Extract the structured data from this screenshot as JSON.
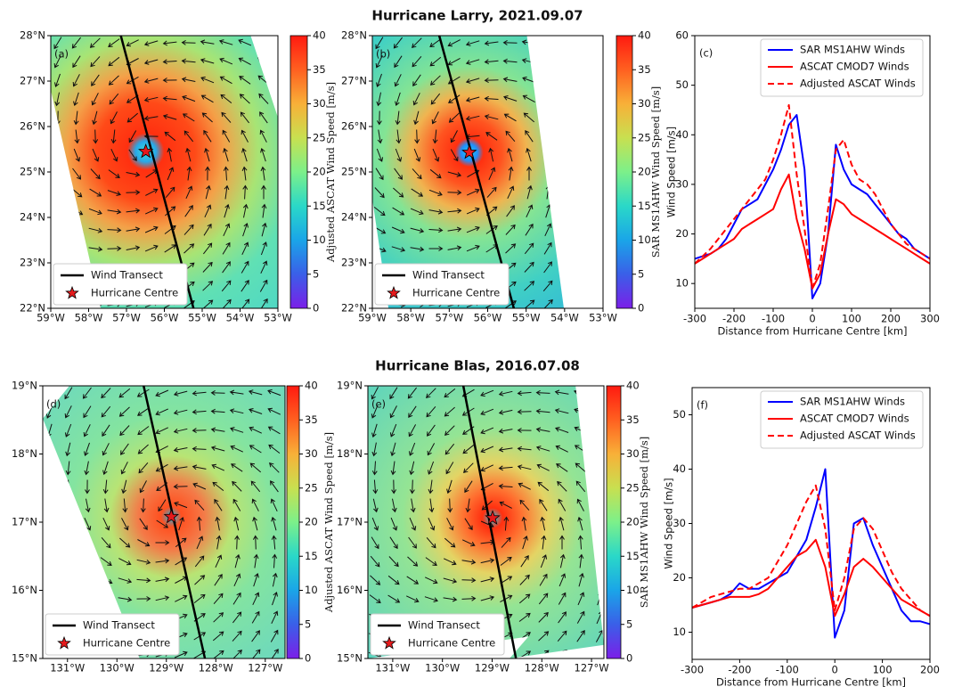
{
  "figure": {
    "titles": [
      "Hurricane Larry, 2021.09.07",
      "Hurricane Blas, 2016.07.08"
    ]
  },
  "chart_data": [
    {
      "type": "map",
      "panel_label": "(a)",
      "xlim": [
        -59,
        -53
      ],
      "xticks": [
        {
          "value": -59,
          "label": "59°W"
        },
        {
          "value": -58,
          "label": "58°W"
        },
        {
          "value": -57,
          "label": "57°W"
        },
        {
          "value": -56,
          "label": "56°W"
        },
        {
          "value": -55,
          "label": "55°W"
        },
        {
          "value": -54,
          "label": "54°W"
        },
        {
          "value": -53,
          "label": "53°W"
        }
      ],
      "ylim": [
        22,
        28
      ],
      "yticks": [
        {
          "value": 22,
          "label": "22°N"
        },
        {
          "value": 23,
          "label": "23°N"
        },
        {
          "value": 24,
          "label": "24°N"
        },
        {
          "value": 25,
          "label": "25°N"
        },
        {
          "value": 26,
          "label": "26°N"
        },
        {
          "value": 27,
          "label": "27°N"
        },
        {
          "value": 28,
          "label": "28°N"
        }
      ],
      "transect": {
        "x": [
          -57.15,
          -55.23
        ],
        "y": [
          28,
          22
        ],
        "color": "#000000",
        "name": "Wind Transect"
      },
      "centre": {
        "x": -56.49,
        "y": 25.45,
        "color": "#e41a1c",
        "name": "Hurricane Centre"
      },
      "colorbar": {
        "label": "Adjusted ASCAT Wind Speed [m/s]",
        "lim": [
          0,
          40
        ],
        "ticks": [
          0,
          5,
          10,
          15,
          20,
          25,
          30,
          35,
          40
        ],
        "colors": [
          "#7b1fe8",
          "#3a5fe8",
          "#1aa5e8",
          "#2ad8c8",
          "#7cf08a",
          "#c8e050",
          "#f8b038",
          "#ff6020",
          "#ff1a10"
        ]
      }
    },
    {
      "type": "map",
      "panel_label": "(b)",
      "xlim": [
        -59,
        -53
      ],
      "xticks": [
        {
          "value": -59,
          "label": "59°W"
        },
        {
          "value": -58,
          "label": "58°W"
        },
        {
          "value": -57,
          "label": "57°W"
        },
        {
          "value": -56,
          "label": "56°W"
        },
        {
          "value": -55,
          "label": "55°W"
        },
        {
          "value": -54,
          "label": "54°W"
        },
        {
          "value": -53,
          "label": "53°W"
        }
      ],
      "ylim": [
        22,
        28
      ],
      "yticks": [
        {
          "value": 22,
          "label": "22°N"
        },
        {
          "value": 23,
          "label": "23°N"
        },
        {
          "value": 24,
          "label": "24°N"
        },
        {
          "value": 25,
          "label": "25°N"
        },
        {
          "value": 26,
          "label": "26°N"
        },
        {
          "value": 27,
          "label": "27°N"
        },
        {
          "value": 28,
          "label": "28°N"
        }
      ],
      "transect": {
        "x": [
          -57.26,
          -55.32
        ],
        "y": [
          28,
          22
        ],
        "color": "#000000",
        "name": "Wind Transect"
      },
      "centre": {
        "x": -56.48,
        "y": 25.43,
        "color": "#e41a1c",
        "name": "Hurricane Centre"
      },
      "colorbar": {
        "label": "SAR MS1AHW Wind Speed [m/s]",
        "lim": [
          0,
          40
        ],
        "ticks": [
          0,
          5,
          10,
          15,
          20,
          25,
          30,
          35,
          40
        ],
        "colors": [
          "#7b1fe8",
          "#3a5fe8",
          "#1aa5e8",
          "#2ad8c8",
          "#7cf08a",
          "#c8e050",
          "#f8b038",
          "#ff6020",
          "#ff1a10"
        ]
      }
    },
    {
      "type": "line",
      "panel_label": "(c)",
      "xlabel": "Distance from Hurricane Centre  [km]",
      "ylabel": "Wind Speed  [m/s]",
      "xlim": [
        -300,
        300
      ],
      "xticks": [
        -300,
        -200,
        -100,
        0,
        100,
        200,
        300
      ],
      "ylim": [
        5,
        60
      ],
      "yticks": [
        10,
        20,
        30,
        40,
        50,
        60
      ],
      "legend": "upper right",
      "x": [
        -300,
        -280,
        -260,
        -240,
        -220,
        -200,
        -180,
        -160,
        -140,
        -120,
        -100,
        -80,
        -60,
        -40,
        -20,
        0,
        20,
        40,
        60,
        80,
        100,
        120,
        140,
        160,
        180,
        200,
        220,
        240,
        260,
        280,
        300
      ],
      "series": [
        {
          "name": "SAR MS1AHW Winds",
          "color": "#0000ff",
          "dashed": false,
          "values": [
            15,
            15.5,
            16,
            17,
            19,
            22,
            25,
            26,
            27,
            30,
            33,
            37,
            42,
            44,
            33,
            7,
            10,
            20,
            38,
            33,
            30,
            29,
            28,
            26,
            24,
            22,
            20,
            19,
            17,
            16,
            15
          ]
        },
        {
          "name": "ASCAT CMOD7 Winds",
          "color": "#ff0000",
          "dashed": false,
          "values": [
            14,
            15,
            16,
            17,
            18,
            19,
            21,
            22,
            23,
            24,
            25,
            29,
            32,
            23,
            17,
            9,
            12,
            20,
            27,
            26,
            24,
            23,
            22,
            21,
            20,
            19,
            18,
            17,
            16,
            15,
            14
          ]
        },
        {
          "name": "Adjusted ASCAT Winds",
          "color": "#ff0000",
          "dashed": true,
          "values": [
            14,
            15.5,
            17,
            19,
            21,
            23,
            25,
            27,
            29,
            31,
            35,
            40,
            46,
            32,
            21,
            9,
            14,
            25,
            37,
            39,
            34,
            31,
            30,
            28,
            25,
            22,
            20,
            18,
            17,
            16,
            15
          ]
        }
      ]
    },
    {
      "type": "map",
      "panel_label": "(d)",
      "xlim": [
        -131.5,
        -126.6
      ],
      "xticks": [
        {
          "value": -131,
          "label": "131°W"
        },
        {
          "value": -130,
          "label": "130°W"
        },
        {
          "value": -129,
          "label": "129°W"
        },
        {
          "value": -128,
          "label": "128°W"
        },
        {
          "value": -127,
          "label": "127°W"
        }
      ],
      "ylim": [
        15,
        19
      ],
      "yticks": [
        {
          "value": 15,
          "label": "15°N"
        },
        {
          "value": 16,
          "label": "16°N"
        },
        {
          "value": 17,
          "label": "17°N"
        },
        {
          "value": 18,
          "label": "18°N"
        },
        {
          "value": 19,
          "label": "19°N"
        }
      ],
      "transect": {
        "x": [
          -129.46,
          -128.22
        ],
        "y": [
          19,
          15
        ],
        "color": "#000000",
        "name": "Wind Transect"
      },
      "centre": {
        "x": -128.9,
        "y": 17.08,
        "color": "#e41a1c",
        "name": "Hurricane Centre"
      },
      "colorbar": {
        "label": "Adjusted ASCAT Wind Speed [m/s]",
        "lim": [
          0,
          40
        ],
        "ticks": [
          0,
          5,
          10,
          15,
          20,
          25,
          30,
          35,
          40
        ],
        "colors": [
          "#7b1fe8",
          "#3a5fe8",
          "#1aa5e8",
          "#2ad8c8",
          "#7cf08a",
          "#c8e050",
          "#f8b038",
          "#ff6020",
          "#ff1a10"
        ]
      }
    },
    {
      "type": "map",
      "panel_label": "(e)",
      "xlim": [
        -131.5,
        -126.75
      ],
      "xticks": [
        {
          "value": -131,
          "label": "131°W"
        },
        {
          "value": -130,
          "label": "130°W"
        },
        {
          "value": -129,
          "label": "129°W"
        },
        {
          "value": -128,
          "label": "128°W"
        },
        {
          "value": -127,
          "label": "127°W"
        }
      ],
      "ylim": [
        15,
        19
      ],
      "yticks": [
        {
          "value": 15,
          "label": "15°N"
        },
        {
          "value": 16,
          "label": "16°N"
        },
        {
          "value": 17,
          "label": "17°N"
        },
        {
          "value": 18,
          "label": "18°N"
        },
        {
          "value": 19,
          "label": "19°N"
        }
      ],
      "transect": {
        "x": [
          -129.58,
          -128.52
        ],
        "y": [
          19,
          15
        ],
        "color": "#000000",
        "name": "Wind Transect"
      },
      "centre": {
        "x": -128.99,
        "y": 17.06,
        "color": "#e41a1c",
        "name": "Hurricane Centre"
      },
      "colorbar": {
        "label": "SAR MS1AHW Wind Speed [m/s]",
        "lim": [
          0,
          40
        ],
        "ticks": [
          0,
          5,
          10,
          15,
          20,
          25,
          30,
          35,
          40
        ],
        "colors": [
          "#7b1fe8",
          "#3a5fe8",
          "#1aa5e8",
          "#2ad8c8",
          "#7cf08a",
          "#c8e050",
          "#f8b038",
          "#ff6020",
          "#ff1a10"
        ]
      }
    },
    {
      "type": "line",
      "panel_label": "(f)",
      "xlabel": "Distance from Hurricane Centre  [km]",
      "ylabel": "Wind Speed  [m/s]",
      "xlim": [
        -300,
        200
      ],
      "xticks": [
        -300,
        -200,
        -100,
        0,
        100,
        200
      ],
      "ylim": [
        5,
        55
      ],
      "yticks": [
        10,
        20,
        30,
        40,
        50
      ],
      "legend": "upper right",
      "x": [
        -300,
        -280,
        -260,
        -240,
        -220,
        -200,
        -180,
        -160,
        -140,
        -120,
        -100,
        -80,
        -60,
        -40,
        -20,
        0,
        20,
        40,
        60,
        80,
        100,
        120,
        140,
        160,
        180,
        200
      ],
      "series": [
        {
          "name": "SAR MS1AHW Winds",
          "color": "#0000ff",
          "dashed": false,
          "values": [
            14.5,
            15,
            15.5,
            16,
            17,
            19,
            18,
            18,
            19,
            20,
            21,
            24,
            27,
            33,
            40,
            9,
            14,
            30,
            31,
            26,
            22,
            18,
            14,
            12,
            12,
            11.5
          ]
        },
        {
          "name": "ASCAT CMOD7 Winds",
          "color": "#ff0000",
          "dashed": false,
          "values": [
            14.5,
            15,
            15.5,
            16,
            16.5,
            16.5,
            16.5,
            17,
            18,
            20,
            22,
            24,
            25,
            27,
            22,
            13,
            17,
            22,
            23.5,
            22,
            20,
            18,
            16,
            15,
            14,
            13
          ]
        },
        {
          "name": "Adjusted ASCAT Winds",
          "color": "#ff0000",
          "dashed": true,
          "values": [
            14.5,
            15.5,
            16.5,
            17,
            17.5,
            18,
            18,
            19,
            20,
            23,
            26,
            30,
            34,
            37,
            29,
            14,
            20,
            29,
            31,
            29,
            25,
            21,
            18,
            16,
            14,
            13
          ]
        }
      ]
    }
  ]
}
